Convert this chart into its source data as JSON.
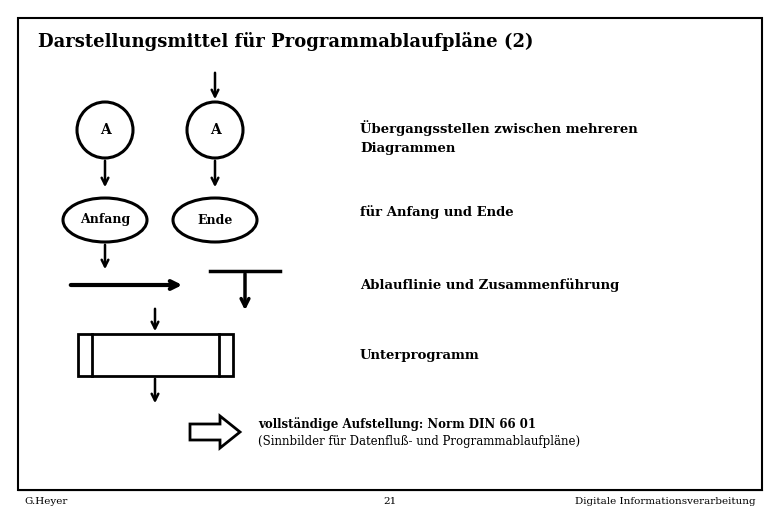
{
  "title": "Darstellungsmittel für Programmablaufpläne (2)",
  "background_color": "#ffffff",
  "border_color": "#000000",
  "text_color": "#000000",
  "footer_left": "G.Heyer",
  "footer_center": "21",
  "footer_right": "Digitale Informationsverarbeitung",
  "label_ubergangsstellen": "Übergangsstellen zwischen mehreren\nDiagrammen",
  "label_anfang_ende": "für Anfang und Ende",
  "label_ablauflinie": "Ablauflinie und Zusammenführung",
  "label_unterprogramm": "Unterprogramm",
  "label_vollstaendig": "vollständige Aufstellung: Norm DIN 66 01",
  "label_sinnbilder": "(Sinnbilder für Datenfluß- und Programmablaufpläne)"
}
